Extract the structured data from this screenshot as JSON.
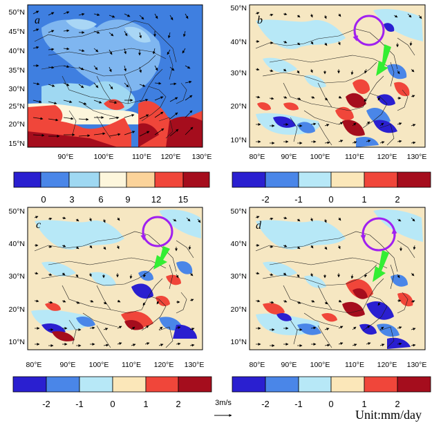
{
  "panels": [
    {
      "label": "a",
      "lat_ticks": [
        "50°N",
        "45°N",
        "40°N",
        "35°N",
        "30°N",
        "25°N",
        "20°N",
        "15°N"
      ],
      "lon_ticks": [
        "90°E",
        "100°E",
        "110°E",
        "120°E",
        "130°E"
      ],
      "colorbar": {
        "labels": [
          "0",
          "3",
          "6",
          "9",
          "12",
          "15"
        ],
        "colors": [
          "#2a1fd0",
          "#4a86e8",
          "#9fd8f2",
          "#fdf6dc",
          "#fbd39a",
          "#f0463a",
          "#a50d1d"
        ]
      }
    },
    {
      "label": "b",
      "lat_ticks": [
        "50°N",
        "40°N",
        "30°N",
        "20°N",
        "10°N"
      ],
      "lon_ticks": [
        "80°E",
        "90°E",
        "100°E",
        "110°E",
        "120°E",
        "130°E"
      ],
      "colorbar": {
        "labels": [
          "-2",
          "-1",
          "0",
          "1",
          "2"
        ],
        "colors": [
          "#2a1fd0",
          "#4a86e8",
          "#b7e8f7",
          "#fbe7b9",
          "#f0463a",
          "#a50d1d"
        ]
      }
    },
    {
      "label": "c",
      "lat_ticks": [
        "50°N",
        "40°N",
        "30°N",
        "20°N",
        "10°N"
      ],
      "lon_ticks": [
        "80°E",
        "90°E",
        "100°E",
        "110°E",
        "120°E",
        "130°E"
      ],
      "colorbar": {
        "labels": [
          "-2",
          "-1",
          "0",
          "1",
          "2"
        ],
        "colors": [
          "#2a1fd0",
          "#4a86e8",
          "#b7e8f7",
          "#fbe7b9",
          "#f0463a",
          "#a50d1d"
        ]
      }
    },
    {
      "label": "d",
      "lat_ticks": [
        "50°N",
        "40°N",
        "30°N",
        "20°N",
        "10°N"
      ],
      "lon_ticks": [
        "80°E",
        "90°E",
        "100°E",
        "110°E",
        "120°E",
        "130°E"
      ],
      "colorbar": {
        "labels": [
          "-2",
          "-1",
          "0",
          "1",
          "2"
        ],
        "colors": [
          "#2a1fd0",
          "#4a86e8",
          "#b7e8f7",
          "#fbe7b9",
          "#f0463a",
          "#a50d1d"
        ]
      }
    }
  ],
  "reference_vector": "3m/s",
  "unit_label": "Unit:mm/day",
  "annotation_colors": {
    "circle": "#a020f0",
    "arrow": "#33ee33"
  }
}
